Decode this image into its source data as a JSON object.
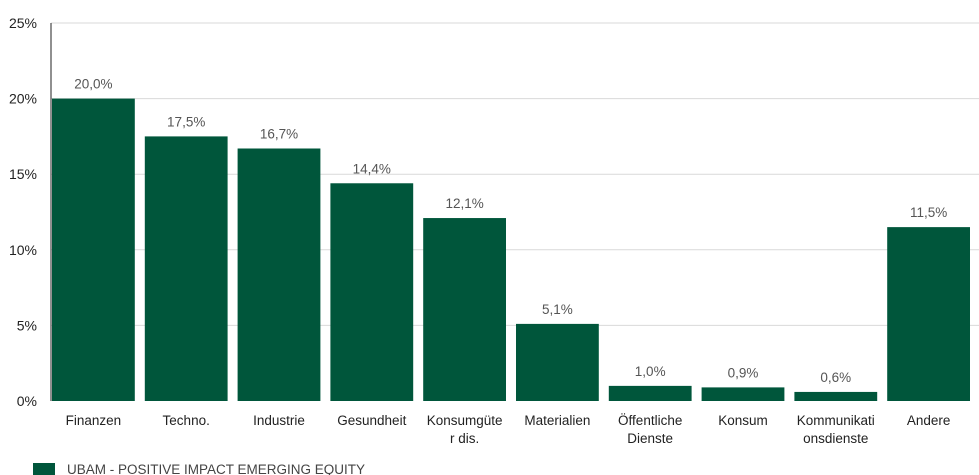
{
  "chart_data": {
    "type": "bar",
    "categories": [
      [
        "Finanzen"
      ],
      [
        "Techno."
      ],
      [
        "Industrie"
      ],
      [
        "Gesundheit"
      ],
      [
        "Konsumgüte",
        "r dis."
      ],
      [
        "Materialien"
      ],
      [
        "Öffentliche",
        "Dienste"
      ],
      [
        "Konsum"
      ],
      [
        "Kommunikati",
        "onsdienste"
      ],
      [
        "Andere"
      ]
    ],
    "series": [
      {
        "name": "UBAM - POSITIVE IMPACT EMERGING EQUITY",
        "values": [
          20.0,
          17.5,
          16.7,
          14.4,
          12.1,
          5.1,
          1.0,
          0.9,
          0.6,
          11.5
        ],
        "labels": [
          "20,0%",
          "17,5%",
          "16,7%",
          "14,4%",
          "12,1%",
          "5,1%",
          "1,0%",
          "0,9%",
          "0,6%",
          "11,5%"
        ],
        "color": "#00563b"
      }
    ],
    "ylim": [
      0,
      25
    ],
    "yticks": [
      0,
      5,
      10,
      15,
      20,
      25
    ],
    "ytick_labels": [
      "0%",
      "5%",
      "10%",
      "15%",
      "20%",
      "25%"
    ],
    "grid": true,
    "legend": "bottom-left",
    "title": "",
    "xlabel": "",
    "ylabel": ""
  }
}
